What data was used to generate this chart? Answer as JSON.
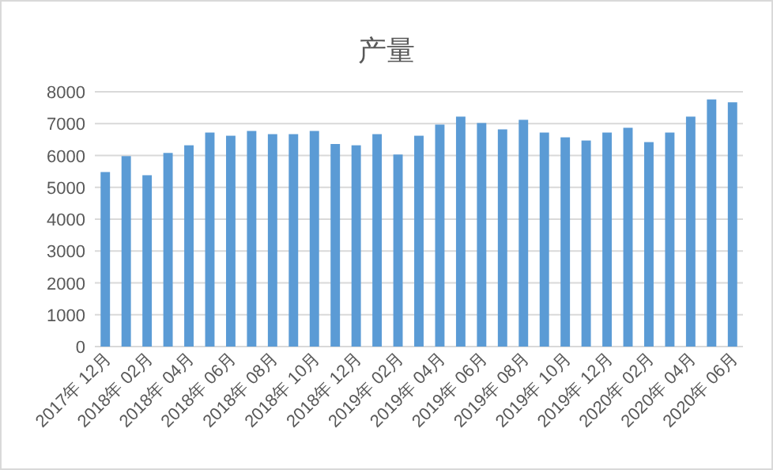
{
  "chart_data": {
    "type": "bar",
    "title": "产量",
    "categories": [
      "2017年 12月",
      null,
      "2018年 02月",
      null,
      "2018年 04月",
      null,
      "2018年 06月",
      null,
      "2018年 08月",
      null,
      "2018年 10月",
      null,
      "2018年 12月",
      null,
      "2019年 02月",
      null,
      "2019年 04月",
      null,
      "2019年 06月",
      null,
      "2019年 08月",
      null,
      "2019年 10月",
      null,
      "2019年 12月",
      null,
      "2020年 02月",
      null,
      "2020年 04月",
      null,
      "2020年 06月"
    ],
    "values": [
      5480,
      5980,
      5380,
      6080,
      6320,
      6720,
      6620,
      6770,
      6670,
      6670,
      6770,
      6360,
      6320,
      6670,
      6030,
      6620,
      6970,
      7220,
      7020,
      6820,
      7120,
      6720,
      6570,
      6470,
      6720,
      6870,
      6420,
      6720,
      7220,
      7760,
      7670
    ],
    "color": "#5b9bd5",
    "ylim": [
      0,
      8000
    ],
    "yticks": [
      0,
      1000,
      2000,
      3000,
      4000,
      5000,
      6000,
      7000,
      8000
    ],
    "grid": "y"
  }
}
